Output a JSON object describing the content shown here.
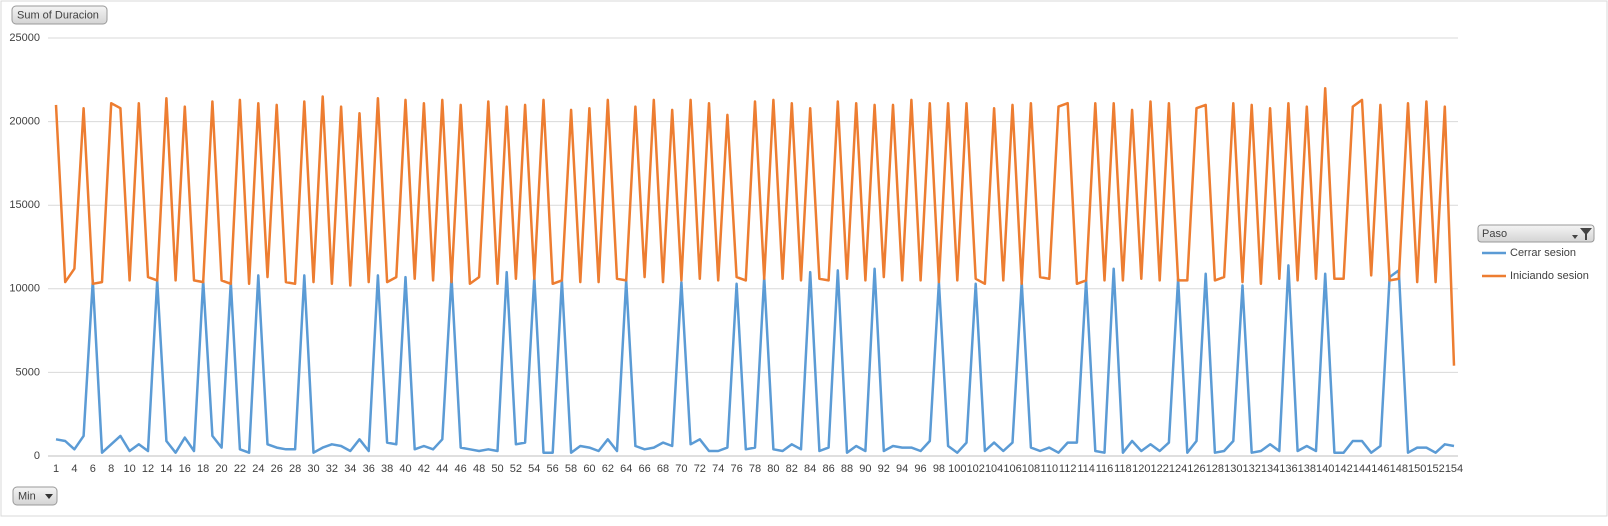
{
  "chart_data": {
    "type": "line",
    "value_field": "Sum of Duracion",
    "axis_field": "Min",
    "legend_title": "Paso",
    "categories": [
      1,
      null,
      4,
      null,
      6,
      null,
      8,
      null,
      10,
      null,
      12,
      null,
      14,
      null,
      16,
      null,
      18,
      null,
      20,
      null,
      22,
      null,
      24,
      null,
      26,
      null,
      28,
      null,
      30,
      null,
      32,
      null,
      34,
      null,
      36,
      null,
      38,
      null,
      40,
      null,
      42,
      null,
      44,
      null,
      46,
      null,
      48,
      null,
      50,
      null,
      52,
      null,
      54,
      null,
      56,
      null,
      58,
      null,
      60,
      null,
      62,
      null,
      64,
      null,
      66,
      null,
      68,
      null,
      70,
      null,
      72,
      null,
      74,
      null,
      76,
      null,
      78,
      null,
      80,
      null,
      82,
      null,
      84,
      null,
      86,
      null,
      88,
      null,
      90,
      null,
      92,
      null,
      94,
      null,
      96,
      null,
      98,
      null,
      100,
      null,
      102,
      null,
      104,
      null,
      106,
      null,
      108,
      null,
      110,
      null,
      112,
      null,
      114,
      null,
      116,
      null,
      118,
      null,
      120,
      null,
      122,
      null,
      124,
      null,
      126,
      null,
      128,
      null,
      130,
      null,
      132,
      null,
      134,
      null,
      136,
      null,
      138,
      null,
      140,
      null,
      142,
      null,
      144,
      null,
      146,
      null,
      148,
      null,
      150,
      null,
      152,
      null,
      154
    ],
    "series": [
      {
        "name": "Cerrar sesion",
        "color": "#5b9bd5",
        "values": [
          1000,
          900,
          400,
          1200,
          10500,
          200,
          700,
          1200,
          300,
          700,
          300,
          10500,
          900,
          200,
          1100,
          300,
          10500,
          1200,
          500,
          10400,
          400,
          200,
          10800,
          700,
          500,
          400,
          400,
          10800,
          200,
          500,
          700,
          600,
          300,
          1000,
          300,
          10800,
          800,
          700,
          10700,
          400,
          600,
          400,
          1000,
          10700,
          500,
          400,
          300,
          400,
          300,
          11000,
          700,
          800,
          10700,
          200,
          200,
          10500,
          200,
          600,
          500,
          300,
          1000,
          300,
          10500,
          600,
          400,
          500,
          800,
          600,
          10400,
          700,
          1000,
          300,
          300,
          500,
          10300,
          400,
          500,
          10700,
          400,
          300,
          700,
          400,
          11000,
          300,
          500,
          11100,
          200,
          600,
          300,
          11200,
          300,
          600,
          500,
          500,
          300,
          900,
          10400,
          600,
          200,
          800,
          10300,
          300,
          800,
          300,
          800,
          10400,
          500,
          300,
          500,
          200,
          800,
          800,
          10500,
          300,
          200,
          11200,
          200,
          900,
          300,
          700,
          300,
          800,
          10600,
          200,
          900,
          10900,
          200,
          300,
          900,
          10200,
          200,
          300,
          700,
          300,
          11400,
          300,
          600,
          300,
          10900,
          200,
          200,
          900,
          900,
          200,
          600,
          10700,
          11100,
          200,
          500,
          500,
          200,
          700,
          600
        ]
      },
      {
        "name": "Iniciando sesion",
        "color": "#ed7d31",
        "values": [
          21000,
          10400,
          11200,
          20800,
          10300,
          10400,
          21100,
          20800,
          10500,
          21100,
          10700,
          10500,
          21400,
          10500,
          20900,
          10500,
          10400,
          21200,
          10500,
          10300,
          21300,
          10300,
          21100,
          10700,
          21000,
          10400,
          10300,
          21200,
          10400,
          21500,
          10300,
          20900,
          10200,
          20500,
          10400,
          21400,
          10400,
          10700,
          21300,
          10600,
          21100,
          10500,
          21300,
          10400,
          21000,
          10300,
          10700,
          21200,
          10300,
          20900,
          10600,
          21000,
          10600,
          21300,
          10300,
          10500,
          20700,
          10400,
          20800,
          10400,
          21300,
          10600,
          10500,
          20900,
          10700,
          21300,
          10400,
          20700,
          10500,
          21300,
          10600,
          21100,
          10500,
          20400,
          10700,
          10500,
          21200,
          10600,
          21300,
          10600,
          21100,
          10500,
          20800,
          10600,
          10500,
          21200,
          10600,
          21100,
          10500,
          21000,
          10700,
          21000,
          10500,
          21300,
          10500,
          21100,
          10400,
          21100,
          10500,
          21100,
          10600,
          10300,
          20800,
          10500,
          21000,
          10300,
          21100,
          10700,
          10600,
          20900,
          21100,
          10300,
          10500,
          21100,
          10500,
          21100,
          10500,
          20700,
          10600,
          21200,
          10500,
          21100,
          10500,
          10500,
          20800,
          21000,
          10500,
          10700,
          21100,
          10400,
          21000,
          10300,
          20800,
          10600,
          21100,
          10500,
          20900,
          10600,
          22000,
          10600,
          10600,
          20900,
          21300,
          10800,
          21000,
          10500,
          10600,
          21100,
          10400,
          21200,
          10400,
          20900,
          5400
        ]
      }
    ],
    "ylim": [
      0,
      25000
    ],
    "yticks": [
      0,
      5000,
      10000,
      15000,
      20000,
      25000
    ],
    "grid": true
  }
}
